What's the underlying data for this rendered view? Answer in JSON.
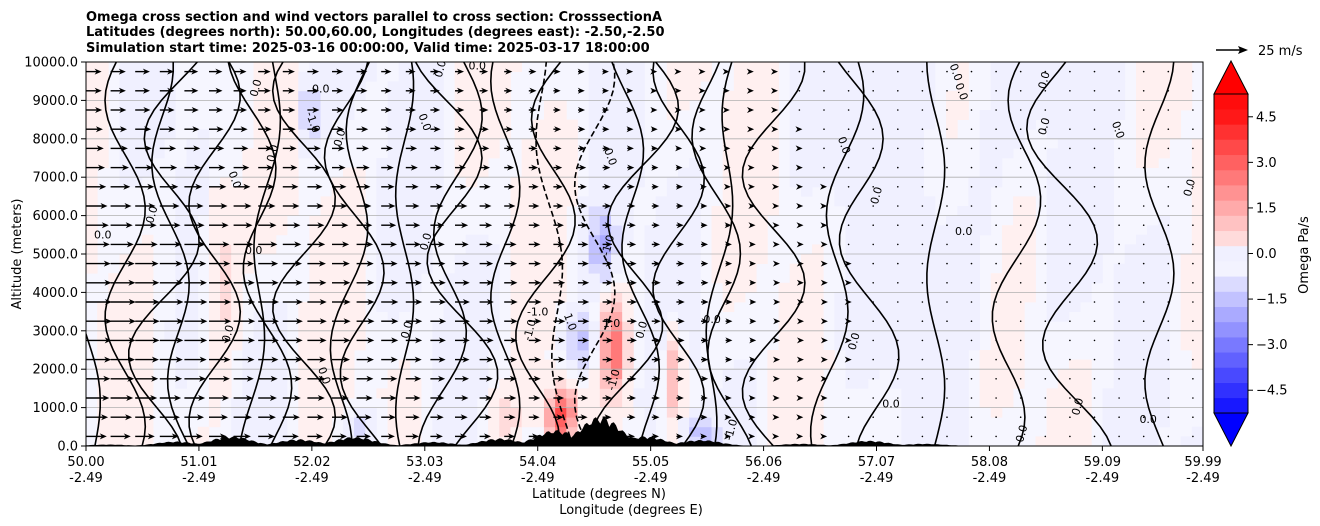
{
  "chart_data": {
    "type": "heatmap",
    "title_lines": [
      "Omega cross section and wind vectors parallel to cross section: CrosssectionA",
      "Latitudes (degrees north): 50.00,60.00, Longitudes (degrees east): -2.50,-2.50",
      "Simulation start time: 2025-03-16 00:00:00, Valid time: 2025-03-17 18:00:00"
    ],
    "ylabel": "Altitude (meters)",
    "xlabel_lines": [
      "Latitude (degrees N)",
      "Longitude (degrees E)"
    ],
    "ylim": [
      0,
      10000
    ],
    "xlim": [
      50.0,
      59.99
    ],
    "y_ticks": [
      0,
      1000,
      2000,
      3000,
      4000,
      5000,
      6000,
      7000,
      8000,
      9000,
      10000
    ],
    "y_tick_labels": [
      "0.0",
      "1000.0",
      "2000.0",
      "3000.0",
      "4000.0",
      "5000.0",
      "6000.0",
      "7000.0",
      "8000.0",
      "9000.0",
      "10000.0"
    ],
    "x_ticks": [
      50.0,
      51.01,
      52.02,
      53.03,
      54.04,
      55.05,
      56.06,
      57.07,
      58.08,
      59.09,
      59.99
    ],
    "x_tick_labels": [
      {
        "lat": "50.00",
        "lon": "-2.49"
      },
      {
        "lat": "51.01",
        "lon": "-2.49"
      },
      {
        "lat": "52.02",
        "lon": "-2.49"
      },
      {
        "lat": "53.03",
        "lon": "-2.49"
      },
      {
        "lat": "54.04",
        "lon": "-2.49"
      },
      {
        "lat": "55.05",
        "lon": "-2.49"
      },
      {
        "lat": "56.06",
        "lon": "-2.49"
      },
      {
        "lat": "57.07",
        "lon": "-2.49"
      },
      {
        "lat": "58.08",
        "lon": "-2.49"
      },
      {
        "lat": "59.09",
        "lon": "-2.49"
      },
      {
        "lat": "59.99",
        "lon": "-2.49"
      }
    ],
    "grid": "horizontal",
    "colorbar": {
      "label": "Omega Pa/s",
      "range": [
        -5.25,
        5.25
      ],
      "ticks": [
        -4.5,
        -3.0,
        -1.5,
        0.0,
        1.5,
        3.0,
        4.5
      ],
      "tick_labels": [
        "−4.5",
        "−3.0",
        "−1.5",
        "0.0",
        "1.5",
        "3.0",
        "4.5"
      ],
      "extend": "both",
      "colormap": "bwr"
    },
    "quiver_key": {
      "value": 25,
      "label": "25 m/s"
    },
    "contour_levels": [
      -1.0,
      0.0,
      1.0
    ],
    "contour_labels": [
      {
        "text": "0.0",
        "lat": 50.15,
        "alt": 5400
      },
      {
        "text": "0.0",
        "lat": 50.62,
        "alt": 6000
      },
      {
        "text": "0.0",
        "lat": 51.3,
        "alt": 6900
      },
      {
        "text": "0.0",
        "lat": 51.55,
        "alt": 9300
      },
      {
        "text": "0.0",
        "lat": 52.1,
        "alt": 9200
      },
      {
        "text": "0.0",
        "lat": 52.3,
        "alt": 8000
      },
      {
        "text": "-1.0",
        "lat": 52.0,
        "alt": 8400
      },
      {
        "text": "0.0",
        "lat": 51.7,
        "alt": 7600
      },
      {
        "text": "0.0",
        "lat": 51.5,
        "alt": 5000
      },
      {
        "text": "0.0",
        "lat": 53.07,
        "alt": 5300
      },
      {
        "text": "0.0",
        "lat": 53.0,
        "alt": 8400
      },
      {
        "text": "0.0",
        "lat": 53.2,
        "alt": 9800
      },
      {
        "text": "0.0",
        "lat": 53.5,
        "alt": 9800
      },
      {
        "text": "0.0",
        "lat": 51.3,
        "alt": 2900
      },
      {
        "text": "0.0",
        "lat": 52.1,
        "alt": 1800
      },
      {
        "text": "0.0",
        "lat": 52.9,
        "alt": 3000
      },
      {
        "text": "-1.0",
        "lat": 54.04,
        "alt": 3400
      },
      {
        "text": "-1.0",
        "lat": 54.0,
        "alt": 3000
      },
      {
        "text": "1.0",
        "lat": 54.3,
        "alt": 3200
      },
      {
        "text": "-1.0",
        "lat": 54.7,
        "alt": 5200
      },
      {
        "text": "1.0",
        "lat": 54.7,
        "alt": 3100
      },
      {
        "text": "-1.0",
        "lat": 54.75,
        "alt": 1700
      },
      {
        "text": "0.0",
        "lat": 54.66,
        "alt": 7500
      },
      {
        "text": "0.0",
        "lat": 55.0,
        "alt": 3000
      },
      {
        "text": "0.0",
        "lat": 55.6,
        "alt": 3200
      },
      {
        "text": "-1.0",
        "lat": 55.8,
        "alt": 400
      },
      {
        "text": "0.0",
        "lat": 56.75,
        "alt": 7800
      },
      {
        "text": "0.0",
        "lat": 57.1,
        "alt": 6500
      },
      {
        "text": "0.0",
        "lat": 57.85,
        "alt": 5500
      },
      {
        "text": "0.0",
        "lat": 58.6,
        "alt": 8300
      },
      {
        "text": "0.0",
        "lat": 59.2,
        "alt": 8200
      },
      {
        "text": "0.0",
        "lat": 59.9,
        "alt": 6700
      },
      {
        "text": "0.0",
        "lat": 57.2,
        "alt": 1000
      },
      {
        "text": "0.0",
        "lat": 56.9,
        "alt": 2700
      },
      {
        "text": "0.0",
        "lat": 57.75,
        "alt": 9700
      },
      {
        "text": "0.0",
        "lat": 58.9,
        "alt": 1000
      },
      {
        "text": "0.0",
        "lat": 59.5,
        "alt": 600
      },
      {
        "text": "0.0",
        "lat": 58.4,
        "alt": 300
      },
      {
        "text": "0.0",
        "lat": 57.8,
        "alt": 9200
      },
      {
        "text": "0.0",
        "lat": 58.6,
        "alt": 9500
      }
    ]
  }
}
